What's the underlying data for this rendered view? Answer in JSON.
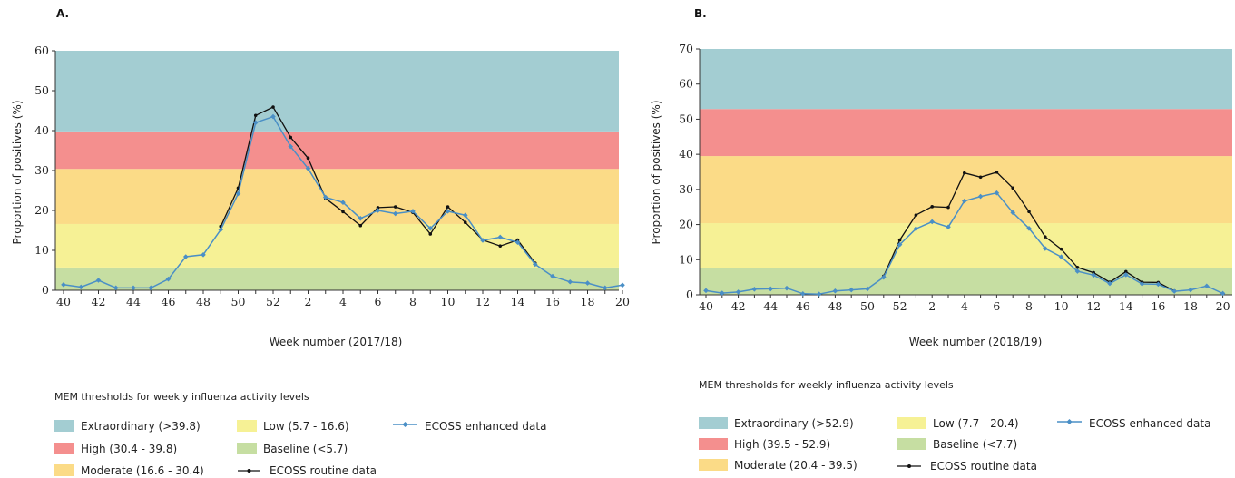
{
  "chart_data": [
    {
      "type": "line",
      "panel_label": "A.",
      "xlabel": "Week number (2017/18)",
      "ylabel": "Proportion of positives (%)",
      "ylim": [
        0,
        60
      ],
      "yticks": [
        0,
        10,
        20,
        30,
        40,
        50,
        60
      ],
      "x": [
        "40",
        "41",
        "42",
        "43",
        "44",
        "45",
        "46",
        "47",
        "48",
        "49",
        "50",
        "51",
        "52",
        "1",
        "2",
        "3",
        "4",
        "5",
        "6",
        "7",
        "8",
        "9",
        "10",
        "11",
        "12",
        "13",
        "14",
        "15",
        "16",
        "17",
        "18",
        "19",
        "20"
      ],
      "xtick_labels": [
        "40",
        "42",
        "44",
        "46",
        "48",
        "50",
        "52",
        "2",
        "4",
        "6",
        "8",
        "10",
        "12",
        "14",
        "16",
        "18",
        "20"
      ],
      "bands": [
        {
          "name": "Baseline",
          "label": "Baseline (<5.7)",
          "from": 0,
          "to": 5.7,
          "color": "#c6dea2"
        },
        {
          "name": "Low",
          "label": "Low (5.7 - 16.6)",
          "from": 5.7,
          "to": 16.6,
          "color": "#f6f195"
        },
        {
          "name": "Moderate",
          "label": "Moderate (16.6 - 30.4)",
          "from": 16.6,
          "to": 30.4,
          "color": "#fbdb87"
        },
        {
          "name": "High",
          "label": "High (30.4 - 39.8)",
          "from": 30.4,
          "to": 39.8,
          "color": "#f48f8e"
        },
        {
          "name": "Extraordinary",
          "label": "Extraordinary (>39.8)",
          "from": 39.8,
          "to": 60,
          "color": "#a3cdd2"
        }
      ],
      "series": [
        {
          "name": "ECOSS enhanced data",
          "color": "#4a8fc6",
          "values": [
            1.4,
            0.8,
            2.5,
            0.6,
            0.6,
            0.6,
            2.8,
            8.4,
            8.9,
            15.2,
            24.2,
            42.0,
            43.5,
            36.0,
            30.5,
            23.3,
            22.0,
            18.0,
            20.0,
            19.2,
            19.8,
            15.5,
            19.8,
            18.8,
            12.5,
            13.3,
            12.0,
            6.5,
            3.5,
            2.1,
            1.8,
            0.6,
            1.3
          ]
        },
        {
          "name": "ECOSS routine data",
          "color": "#111111",
          "values": [
            null,
            null,
            null,
            null,
            null,
            null,
            null,
            null,
            null,
            16.0,
            25.6,
            43.8,
            45.9,
            38.3,
            33.1,
            23.0,
            19.7,
            16.2,
            20.7,
            20.9,
            19.5,
            14.1,
            20.9,
            17.0,
            12.6,
            11.1,
            12.6,
            6.8,
            null,
            null,
            null,
            null,
            null
          ]
        }
      ],
      "legend": {
        "title": "MEM thresholds for weekly influenza activity levels",
        "enhanced_label": "ECOSS enhanced data",
        "routine_label": "ECOSS routine data"
      }
    },
    {
      "type": "line",
      "panel_label": "B.",
      "xlabel": "Week number (2018/19)",
      "ylabel": "Proportion of positives (%)",
      "ylim": [
        0,
        70
      ],
      "yticks": [
        0,
        10,
        20,
        30,
        40,
        50,
        60,
        70
      ],
      "x": [
        "40",
        "41",
        "42",
        "43",
        "44",
        "45",
        "46",
        "47",
        "48",
        "49",
        "50",
        "51",
        "52",
        "1",
        "2",
        "3",
        "4",
        "5",
        "6",
        "7",
        "8",
        "9",
        "10",
        "11",
        "12",
        "13",
        "14",
        "15",
        "16",
        "17",
        "18",
        "19",
        "20"
      ],
      "xtick_labels": [
        "40",
        "42",
        "44",
        "46",
        "48",
        "50",
        "52",
        "2",
        "4",
        "6",
        "8",
        "10",
        "12",
        "14",
        "16",
        "18",
        "20"
      ],
      "bands": [
        {
          "name": "Baseline",
          "label": "Baseline (<7.7)",
          "from": 0,
          "to": 7.7,
          "color": "#c6dea2"
        },
        {
          "name": "Low",
          "label": "Low (7.7 - 20.4)",
          "from": 7.7,
          "to": 20.4,
          "color": "#f6f195"
        },
        {
          "name": "Moderate",
          "label": "Moderate (20.4 - 39.5)",
          "from": 20.4,
          "to": 39.5,
          "color": "#fbdb87"
        },
        {
          "name": "High",
          "label": "High (39.5 - 52.9)",
          "from": 39.5,
          "to": 52.9,
          "color": "#f48f8e"
        },
        {
          "name": "Extraordinary",
          "label": "Extraordinary (>52.9)",
          "from": 52.9,
          "to": 70,
          "color": "#a3cdd2"
        }
      ],
      "series": [
        {
          "name": "ECOSS enhanced data",
          "color": "#4a8fc6",
          "values": [
            1.2,
            0.5,
            0.8,
            1.6,
            1.7,
            1.9,
            0.3,
            0.2,
            1.1,
            1.4,
            1.7,
            5.0,
            14.3,
            18.8,
            20.8,
            19.3,
            26.7,
            28.0,
            29.0,
            23.4,
            18.9,
            13.2,
            10.8,
            6.7,
            5.6,
            3.2,
            5.7,
            3.1,
            3.0,
            1.0,
            1.4,
            2.5,
            0.4
          ]
        },
        {
          "name": "ECOSS routine data",
          "color": "#111111",
          "values": [
            null,
            null,
            null,
            null,
            null,
            null,
            null,
            null,
            null,
            null,
            null,
            5.3,
            15.6,
            22.7,
            25.1,
            24.9,
            34.7,
            33.5,
            34.9,
            30.4,
            23.7,
            16.5,
            13.0,
            7.8,
            6.3,
            3.6,
            6.6,
            3.6,
            3.5,
            1.1,
            null,
            null,
            null
          ]
        }
      ],
      "legend": {
        "title": "MEM thresholds for weekly influenza activity levels",
        "enhanced_label": "ECOSS enhanced data",
        "routine_label": "ECOSS routine data"
      }
    }
  ]
}
